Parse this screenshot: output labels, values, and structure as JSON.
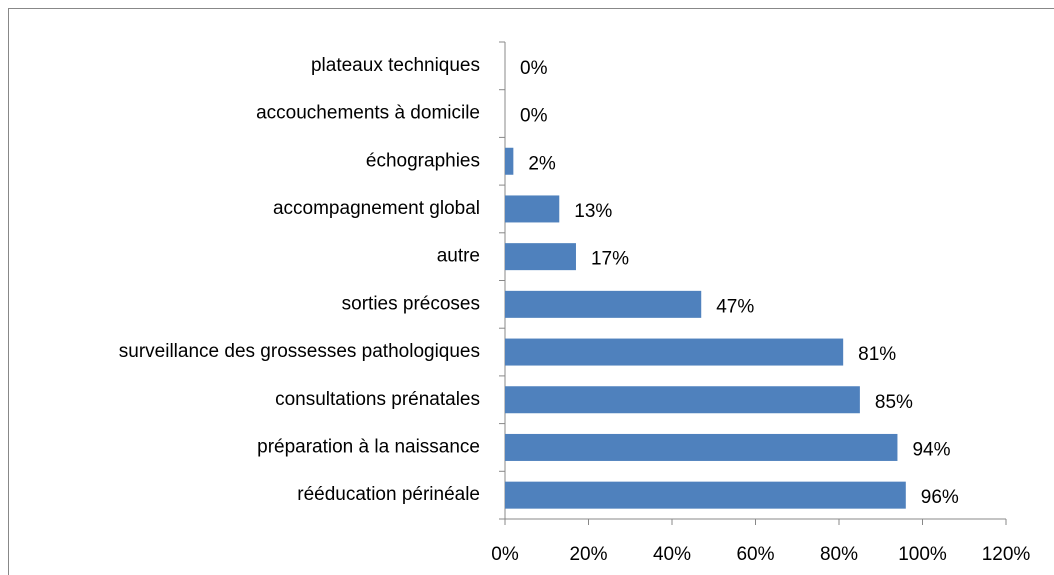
{
  "chart_data": {
    "type": "hbar",
    "categories": [
      "plateaux techniques",
      "accouchements à domicile",
      "échographies",
      "accompagnement global",
      "autre",
      "sorties précoses",
      "surveillance des grossesses pathologiques",
      "consultations prénatales",
      "préparation à la naissance",
      "rééducation périnéale"
    ],
    "values": [
      0,
      0,
      2,
      13,
      17,
      47,
      81,
      85,
      94,
      96
    ],
    "value_labels": [
      "0%",
      "0%",
      "2%",
      "13%",
      "17%",
      "47%",
      "81%",
      "85%",
      "94%",
      "96%"
    ],
    "color": "#4f81bd",
    "xlim": [
      0,
      120
    ],
    "xticks": [
      {
        "value": 0,
        "label": "0%"
      },
      {
        "value": 20,
        "label": "20%"
      },
      {
        "value": 40,
        "label": "40%"
      },
      {
        "value": 60,
        "label": "60%"
      },
      {
        "value": 80,
        "label": "80%"
      },
      {
        "value": 100,
        "label": "100%"
      },
      {
        "value": 120,
        "label": "120%"
      }
    ],
    "grid": false
  }
}
